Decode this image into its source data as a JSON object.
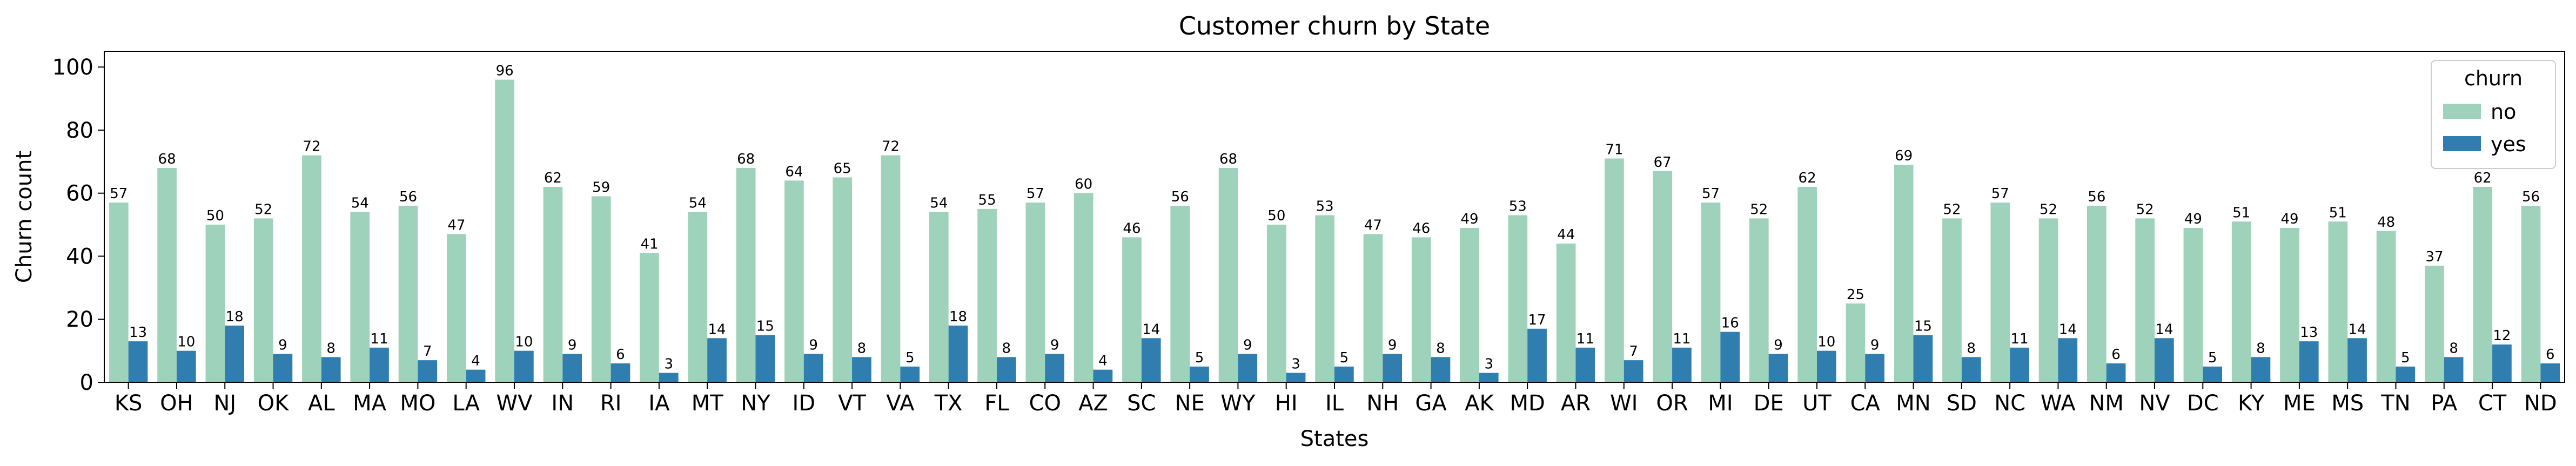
{
  "chart_data": {
    "type": "bar",
    "title": "Customer churn by State",
    "xlabel": "States",
    "ylabel": "Churn count",
    "ylim": [
      0,
      105
    ],
    "yticks": [
      0,
      20,
      40,
      60,
      80,
      100
    ],
    "grid": false,
    "legend": {
      "title": "churn",
      "placement": "top-right"
    },
    "categories": [
      "KS",
      "OH",
      "NJ",
      "OK",
      "AL",
      "MA",
      "MO",
      "LA",
      "WV",
      "IN",
      "RI",
      "IA",
      "MT",
      "NY",
      "ID",
      "VT",
      "VA",
      "TX",
      "FL",
      "CO",
      "AZ",
      "SC",
      "NE",
      "WY",
      "HI",
      "IL",
      "NH",
      "GA",
      "AK",
      "MD",
      "AR",
      "WI",
      "OR",
      "MI",
      "DE",
      "UT",
      "CA",
      "MN",
      "SD",
      "NC",
      "WA",
      "NM",
      "NV",
      "DC",
      "KY",
      "ME",
      "MS",
      "TN",
      "PA",
      "CT",
      "ND"
    ],
    "series": [
      {
        "name": "no",
        "color": "#9fd2ba",
        "values": [
          57,
          68,
          50,
          52,
          72,
          54,
          56,
          47,
          96,
          62,
          59,
          41,
          54,
          68,
          64,
          65,
          72,
          54,
          55,
          57,
          60,
          46,
          56,
          68,
          50,
          53,
          47,
          46,
          49,
          53,
          44,
          71,
          67,
          57,
          52,
          62,
          25,
          69,
          52,
          57,
          52,
          56,
          52,
          49,
          51,
          49,
          51,
          48,
          37,
          62,
          56
        ]
      },
      {
        "name": "yes",
        "color": "#2f7eaf",
        "values": [
          13,
          10,
          18,
          9,
          8,
          11,
          7,
          4,
          10,
          9,
          6,
          3,
          14,
          15,
          9,
          8,
          5,
          18,
          8,
          9,
          4,
          14,
          5,
          9,
          3,
          5,
          9,
          8,
          3,
          17,
          11,
          7,
          11,
          16,
          9,
          10,
          9,
          15,
          8,
          11,
          14,
          6,
          14,
          5,
          8,
          13,
          14,
          5,
          8,
          12,
          6
        ]
      }
    ]
  }
}
